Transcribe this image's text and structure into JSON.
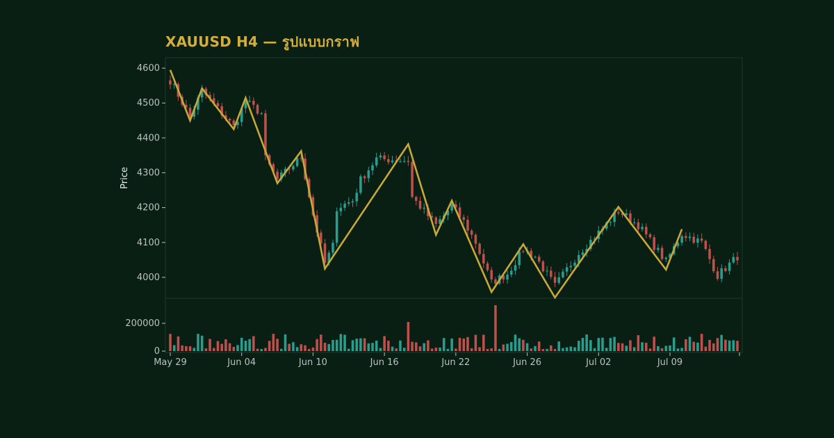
{
  "colors": {
    "background": "#0a1f14",
    "frame": "#1f3a2d",
    "up": "#2a9d8f",
    "down": "#c0504d",
    "zigzag": "#c9a83a",
    "title": "#d4ae3c",
    "tick": "#b9c2bd"
  },
  "chart_data": {
    "type": "candlestick",
    "title": "XAUUSD H4 — รูปแบบกราฟ",
    "ylabel": "Price",
    "x_ticks": [
      "May 29",
      "Jun 04",
      "Jun 10",
      "Jun 16",
      "Jun 22",
      "Jun 26",
      "Jul 02",
      "Jul 09"
    ],
    "x_tick_bar_index": [
      0,
      18,
      36,
      54,
      72,
      90,
      108,
      126
    ],
    "price_ticks": [
      4000,
      4100,
      4200,
      4300,
      4400,
      4500,
      4600
    ],
    "price_range": [
      3940,
      4630
    ],
    "volume_ticks": [
      0,
      200000
    ],
    "volume_range": [
      0,
      380000
    ],
    "bar_count": 144,
    "zigzag_pivots": [
      {
        "bar": 0,
        "price": 4595
      },
      {
        "bar": 5,
        "price": 4450
      },
      {
        "bar": 8,
        "price": 4542
      },
      {
        "bar": 16,
        "price": 4425
      },
      {
        "bar": 19,
        "price": 4515
      },
      {
        "bar": 27,
        "price": 4270
      },
      {
        "bar": 33,
        "price": 4362
      },
      {
        "bar": 39,
        "price": 4025
      },
      {
        "bar": 60,
        "price": 4382
      },
      {
        "bar": 67,
        "price": 4122
      },
      {
        "bar": 71,
        "price": 4220
      },
      {
        "bar": 81,
        "price": 3958
      },
      {
        "bar": 89,
        "price": 4095
      },
      {
        "bar": 97,
        "price": 3942
      },
      {
        "bar": 113,
        "price": 4202
      },
      {
        "bar": 125,
        "price": 4022
      },
      {
        "bar": 129,
        "price": 4138
      }
    ],
    "anchors": [
      {
        "bar": 0,
        "price": 4565
      },
      {
        "bar": 5,
        "price": 4460
      },
      {
        "bar": 8,
        "price": 4535
      },
      {
        "bar": 16,
        "price": 4432
      },
      {
        "bar": 19,
        "price": 4505
      },
      {
        "bar": 23,
        "price": 4470
      },
      {
        "bar": 24,
        "price": 4340
      },
      {
        "bar": 27,
        "price": 4280
      },
      {
        "bar": 33,
        "price": 4345
      },
      {
        "bar": 36,
        "price": 4180
      },
      {
        "bar": 39,
        "price": 4040
      },
      {
        "bar": 41,
        "price": 4090
      },
      {
        "bar": 42,
        "price": 4200
      },
      {
        "bar": 46,
        "price": 4220
      },
      {
        "bar": 48,
        "price": 4280
      },
      {
        "bar": 52,
        "price": 4340
      },
      {
        "bar": 60,
        "price": 4335
      },
      {
        "bar": 61,
        "price": 4230
      },
      {
        "bar": 67,
        "price": 4150
      },
      {
        "bar": 71,
        "price": 4205
      },
      {
        "bar": 74,
        "price": 4160
      },
      {
        "bar": 77,
        "price": 4100
      },
      {
        "bar": 81,
        "price": 3985
      },
      {
        "bar": 85,
        "price": 4010
      },
      {
        "bar": 89,
        "price": 4080
      },
      {
        "bar": 92,
        "price": 4060
      },
      {
        "bar": 97,
        "price": 3975
      },
      {
        "bar": 103,
        "price": 4070
      },
      {
        "bar": 109,
        "price": 4140
      },
      {
        "bar": 113,
        "price": 4190
      },
      {
        "bar": 118,
        "price": 4150
      },
      {
        "bar": 125,
        "price": 4045
      },
      {
        "bar": 129,
        "price": 4125
      },
      {
        "bar": 134,
        "price": 4100
      },
      {
        "bar": 138,
        "price": 4005
      },
      {
        "bar": 143,
        "price": 4060
      }
    ],
    "volume_spikes": [
      {
        "bar": 82,
        "volume": 330000
      },
      {
        "bar": 60,
        "volume": 210000
      }
    ]
  }
}
